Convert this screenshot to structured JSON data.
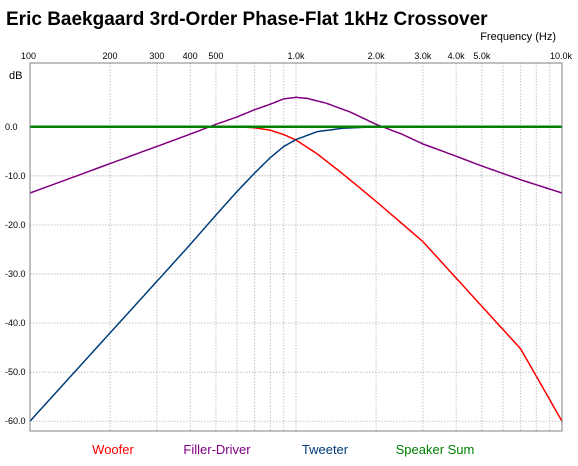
{
  "chart_data": {
    "type": "line",
    "title": "Eric Baekgaard 3rd-Order Phase-Flat 1kHz Crossover",
    "xlabel": "Frequency  (Hz)",
    "ylabel": "dB",
    "x_scale": "log",
    "xlim": [
      100,
      10000
    ],
    "ylim": [
      -62,
      13
    ],
    "grid": true,
    "x_ticks": [
      {
        "value": 100,
        "label": "100"
      },
      {
        "value": 200,
        "label": "200"
      },
      {
        "value": 300,
        "label": "300"
      },
      {
        "value": 400,
        "label": "400"
      },
      {
        "value": 500,
        "label": "500"
      },
      {
        "value": 1000,
        "label": "1.0k"
      },
      {
        "value": 2000,
        "label": "2.0k"
      },
      {
        "value": 3000,
        "label": "3.0k"
      },
      {
        "value": 4000,
        "label": "4.0k"
      },
      {
        "value": 5000,
        "label": "5.0k"
      },
      {
        "value": 10000,
        "label": "10.0k"
      }
    ],
    "x_minor_grid": [
      600,
      700,
      800,
      900,
      6000,
      7000,
      8000,
      9000
    ],
    "y_ticks": [
      {
        "value": 0,
        "label": "0.0"
      },
      {
        "value": -10,
        "label": "-10.0"
      },
      {
        "value": -20,
        "label": "-20.0"
      },
      {
        "value": -30,
        "label": "-30.0"
      },
      {
        "value": -40,
        "label": "-40.0"
      },
      {
        "value": -50,
        "label": "-50.0"
      },
      {
        "value": -60,
        "label": "-60.0"
      }
    ],
    "legend_position": "bottom",
    "series": [
      {
        "name": "Woofer",
        "color": "#ff0000",
        "x": [
          100,
          200,
          400,
          600,
          700,
          800,
          900,
          1000,
          1200,
          1500,
          2000,
          3000,
          5000,
          7000,
          10000
        ],
        "y": [
          0,
          0,
          0,
          0,
          -0.2,
          -0.7,
          -1.6,
          -2.7,
          -5.5,
          -9.6,
          -15.2,
          -23.4,
          -36.6,
          -45.3,
          -60
        ]
      },
      {
        "name": "Filler-Driver",
        "color": "#800080",
        "x": [
          100,
          200,
          300,
          400,
          500,
          600,
          700,
          800,
          900,
          1000,
          1100,
          1300,
          1600,
          2000,
          2500,
          3000,
          4000,
          5000,
          7000,
          10000
        ],
        "y": [
          -13.5,
          -7.5,
          -4,
          -1.5,
          0.5,
          2,
          3.5,
          4.6,
          5.7,
          6,
          5.8,
          4.8,
          3,
          0.5,
          -1.5,
          -3.5,
          -6,
          -8,
          -10.8,
          -13.5
        ]
      },
      {
        "name": "Tweeter",
        "color": "#003d7a",
        "x": [
          100,
          200,
          300,
          400,
          500,
          600,
          700,
          800,
          900,
          1000,
          1200,
          1500,
          2000,
          5000,
          10000
        ],
        "y": [
          -60,
          -42,
          -31.5,
          -24,
          -18,
          -13.2,
          -9.4,
          -6.3,
          -4,
          -2.6,
          -1,
          -0.3,
          0,
          0,
          0
        ]
      },
      {
        "name": "Speaker Sum",
        "color": "#008000",
        "x": [
          100,
          10000
        ],
        "y": [
          0,
          0
        ]
      }
    ]
  }
}
